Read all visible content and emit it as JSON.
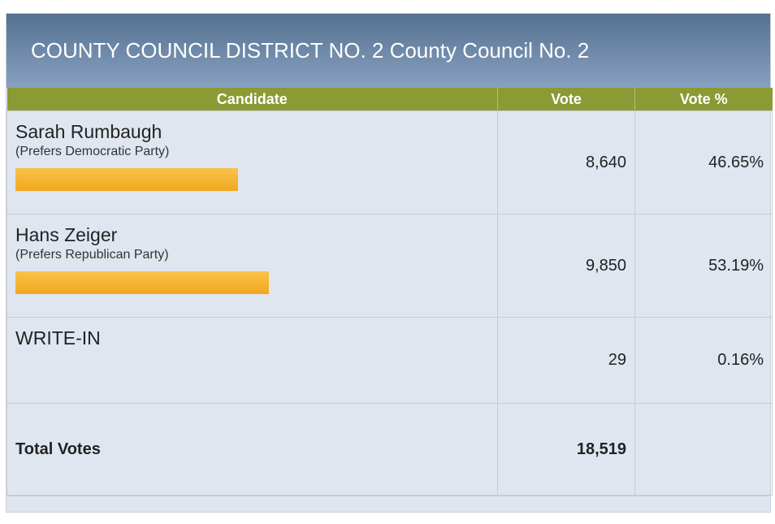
{
  "race": {
    "title": "COUNTY COUNCIL DISTRICT NO. 2 County Council No. 2"
  },
  "columns": {
    "candidate": "Candidate",
    "vote": "Vote",
    "pct": "Vote %"
  },
  "candidates": [
    {
      "name": "Sarah Rumbaugh",
      "party": "(Prefers Democratic Party)",
      "votes": "8,640",
      "pct": "46.65%",
      "bar_percent": 46.65
    },
    {
      "name": "Hans Zeiger",
      "party": "(Prefers Republican Party)",
      "votes": "9,850",
      "pct": "53.19%",
      "bar_percent": 53.19
    },
    {
      "name": "WRITE-IN",
      "party": "",
      "votes": "29",
      "pct": "0.16%",
      "bar_percent": 0
    }
  ],
  "total": {
    "label": "Total Votes",
    "votes": "18,519"
  },
  "colors": {
    "header_bg": "#6f89a8",
    "column_header": "#8a9a34",
    "bar": "#f5b22e",
    "row_bg": "#e0e6f0"
  }
}
